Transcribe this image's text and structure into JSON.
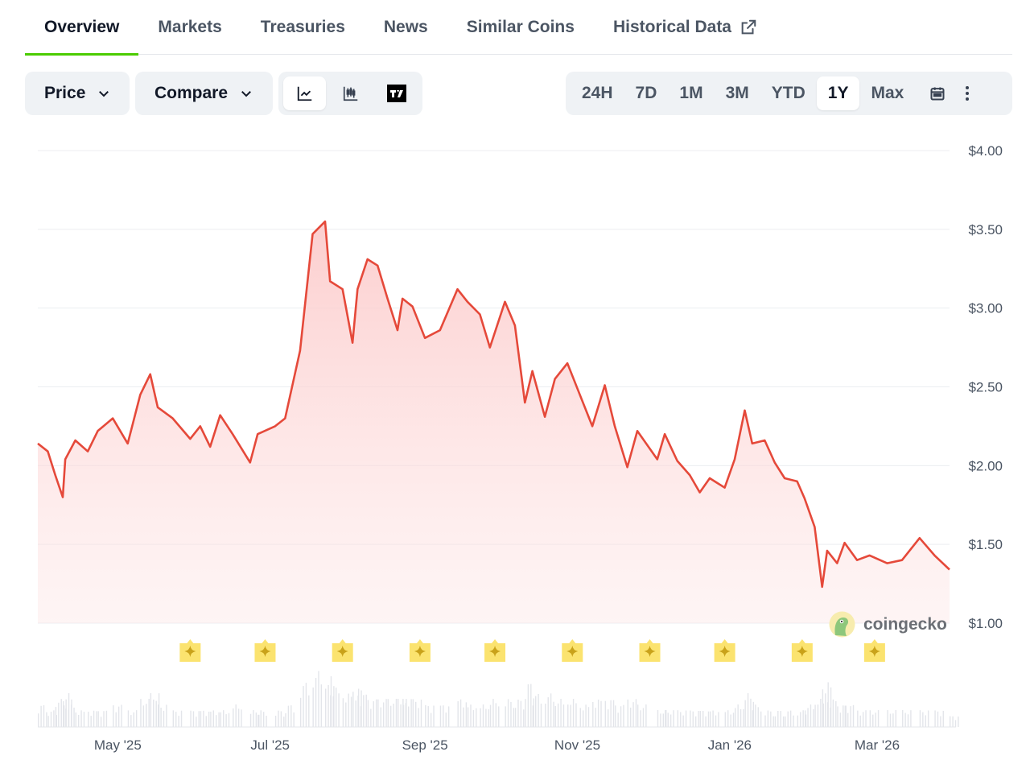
{
  "tabs": [
    {
      "label": "Overview",
      "active": true
    },
    {
      "label": "Markets"
    },
    {
      "label": "Treasuries"
    },
    {
      "label": "News"
    },
    {
      "label": "Similar Coins"
    },
    {
      "label": "Historical Data",
      "icon": "external-link-icon"
    }
  ],
  "toolbar": {
    "price_label": "Price",
    "compare_label": "Compare",
    "chart_types": [
      "line-chart-icon",
      "candlestick-icon",
      "tradingview-icon"
    ],
    "ranges": [
      "24H",
      "7D",
      "1M",
      "3M",
      "YTD",
      "1Y",
      "Max"
    ],
    "active_range": "1Y"
  },
  "watermark": "coingecko",
  "colors": {
    "line": "#e5493a",
    "fill": "#fde2e2",
    "accent": "#4bcc00",
    "marker": "#fbe36f"
  },
  "chart_data": {
    "type": "area",
    "ylim": [
      1,
      4
    ],
    "y_ticks": [
      "$4.00",
      "$3.50",
      "$3.00",
      "$2.50",
      "$2.00",
      "$1.50",
      "$1.00"
    ],
    "y_tick_values": [
      4,
      3.5,
      3,
      2.5,
      2,
      1.5,
      1
    ],
    "x_ticks": [
      {
        "label": "May '25",
        "date": "2025-05-01"
      },
      {
        "label": "Jul '25",
        "date": "2025-07-01"
      },
      {
        "label": "Sep '25",
        "date": "2025-09-01"
      },
      {
        "label": "Nov '25",
        "date": "2025-11-01"
      },
      {
        "label": "Jan '26",
        "date": "2026-01-01"
      },
      {
        "label": "Mar '26",
        "date": "2026-03-01"
      }
    ],
    "xlim": [
      "2025-03-30",
      "2026-03-30"
    ],
    "grid": true,
    "series": [
      {
        "points": [
          [
            "2025-03-30",
            2.14
          ],
          [
            "2025-04-03",
            2.09
          ],
          [
            "2025-04-06",
            1.94
          ],
          [
            "2025-04-09",
            1.8
          ],
          [
            "2025-04-10",
            2.04
          ],
          [
            "2025-04-14",
            2.16
          ],
          [
            "2025-04-19",
            2.09
          ],
          [
            "2025-04-23",
            2.22
          ],
          [
            "2025-04-29",
            2.3
          ],
          [
            "2025-05-05",
            2.14
          ],
          [
            "2025-05-10",
            2.45
          ],
          [
            "2025-05-14",
            2.58
          ],
          [
            "2025-05-17",
            2.37
          ],
          [
            "2025-05-23",
            2.3
          ],
          [
            "2025-05-30",
            2.17
          ],
          [
            "2025-06-03",
            2.25
          ],
          [
            "2025-06-07",
            2.12
          ],
          [
            "2025-06-11",
            2.32
          ],
          [
            "2025-06-16",
            2.2
          ],
          [
            "2025-06-23",
            2.02
          ],
          [
            "2025-06-26",
            2.2
          ],
          [
            "2025-07-03",
            2.25
          ],
          [
            "2025-07-07",
            2.3
          ],
          [
            "2025-07-13",
            2.73
          ],
          [
            "2025-07-18",
            3.47
          ],
          [
            "2025-07-23",
            3.55
          ],
          [
            "2025-07-25",
            3.17
          ],
          [
            "2025-07-30",
            3.12
          ],
          [
            "2025-08-03",
            2.78
          ],
          [
            "2025-08-05",
            3.12
          ],
          [
            "2025-08-09",
            3.31
          ],
          [
            "2025-08-13",
            3.27
          ],
          [
            "2025-08-17",
            3.06
          ],
          [
            "2025-08-21",
            2.86
          ],
          [
            "2025-08-23",
            3.06
          ],
          [
            "2025-08-27",
            3.01
          ],
          [
            "2025-09-01",
            2.81
          ],
          [
            "2025-09-07",
            2.86
          ],
          [
            "2025-09-14",
            3.12
          ],
          [
            "2025-09-18",
            3.04
          ],
          [
            "2025-09-23",
            2.96
          ],
          [
            "2025-09-27",
            2.75
          ],
          [
            "2025-10-03",
            3.04
          ],
          [
            "2025-10-07",
            2.89
          ],
          [
            "2025-10-11",
            2.4
          ],
          [
            "2025-10-14",
            2.6
          ],
          [
            "2025-10-19",
            2.31
          ],
          [
            "2025-10-23",
            2.55
          ],
          [
            "2025-10-28",
            2.65
          ],
          [
            "2025-11-02",
            2.45
          ],
          [
            "2025-11-07",
            2.25
          ],
          [
            "2025-11-12",
            2.51
          ],
          [
            "2025-11-16",
            2.25
          ],
          [
            "2025-11-21",
            1.99
          ],
          [
            "2025-11-25",
            2.22
          ],
          [
            "2025-12-03",
            2.04
          ],
          [
            "2025-12-06",
            2.2
          ],
          [
            "2025-12-11",
            2.03
          ],
          [
            "2025-12-16",
            1.94
          ],
          [
            "2025-12-20",
            1.83
          ],
          [
            "2025-12-24",
            1.92
          ],
          [
            "2025-12-30",
            1.86
          ],
          [
            "2026-01-03",
            2.04
          ],
          [
            "2026-01-07",
            2.35
          ],
          [
            "2026-01-10",
            2.14
          ],
          [
            "2026-01-15",
            2.16
          ],
          [
            "2026-01-19",
            2.02
          ],
          [
            "2026-01-23",
            1.92
          ],
          [
            "2026-01-28",
            1.9
          ],
          [
            "2026-01-31",
            1.79
          ],
          [
            "2026-02-04",
            1.61
          ],
          [
            "2026-02-07",
            1.23
          ],
          [
            "2026-02-09",
            1.46
          ],
          [
            "2026-02-13",
            1.38
          ],
          [
            "2026-02-16",
            1.51
          ],
          [
            "2026-02-21",
            1.4
          ],
          [
            "2026-02-26",
            1.43
          ],
          [
            "2026-03-05",
            1.38
          ],
          [
            "2026-03-11",
            1.4
          ],
          [
            "2026-03-18",
            1.54
          ],
          [
            "2026-03-24",
            1.43
          ],
          [
            "2026-03-30",
            1.34
          ]
        ]
      }
    ],
    "volume_relative": [
      0.4,
      0.3,
      0.5,
      0.6,
      0.4,
      0.3,
      0.3,
      0.3,
      0.4,
      0.3,
      0.5,
      0.6,
      0.4,
      0.3,
      0.3,
      0.3,
      0.3,
      0.3,
      0.4,
      0.3,
      0.3,
      0.3,
      0.4,
      0.8,
      1.0,
      0.9,
      0.7,
      0.6,
      0.7,
      0.6,
      0.5,
      0.5,
      0.5,
      0.5,
      0.5,
      0.5,
      0.4,
      0.4,
      0.5,
      0.4,
      0.4,
      0.5,
      0.5,
      0.5,
      0.8,
      0.6,
      0.6,
      0.5,
      0.5,
      0.4,
      0.5,
      0.5,
      0.4,
      0.5,
      0.4,
      0.3,
      0.3,
      0.3,
      0.3,
      0.3,
      0.3,
      0.3,
      0.4,
      0.6,
      0.4,
      0.3,
      0.3,
      0.3,
      0.3,
      0.4,
      0.5,
      0.8,
      0.5,
      0.4,
      0.4,
      0.3,
      0.3,
      0.3,
      0.3,
      0.3,
      0.3,
      0.2
    ],
    "event_markers": [
      "2025-05-30",
      "2025-06-29",
      "2025-07-30",
      "2025-08-30",
      "2025-09-29",
      "2025-10-30",
      "2025-11-30",
      "2025-12-30",
      "2026-01-30",
      "2026-02-28"
    ]
  }
}
